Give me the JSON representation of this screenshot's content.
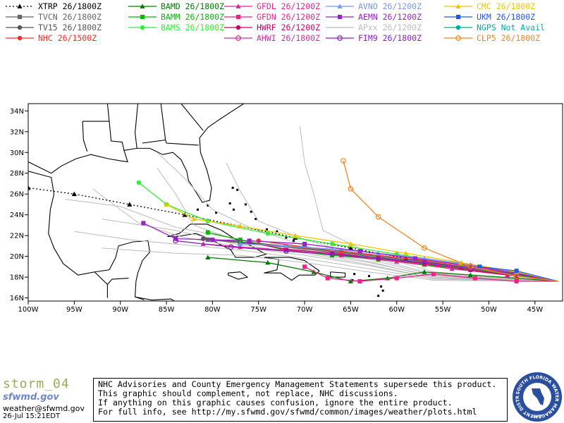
{
  "legend": [
    {
      "label": "XTRP 26/1800Z",
      "color": "#000000",
      "marker": "triangle",
      "dash": true
    },
    {
      "label": "TVCN 26/1800Z",
      "color": "#666666",
      "marker": "square"
    },
    {
      "label": "TV15 26/1800Z",
      "color": "#555555",
      "marker": "circle"
    },
    {
      "label": "NHC 26/1500Z",
      "color": "#ff2a2a",
      "marker": "circle"
    },
    {
      "label": "BAMD 26/1800Z",
      "color": "#007a00",
      "marker": "triangle"
    },
    {
      "label": "BAMM 26/1800Z",
      "color": "#00bb00",
      "marker": "square"
    },
    {
      "label": "BAMS 26/1800Z",
      "color": "#33ee33",
      "marker": "circle"
    },
    {
      "label": "GFDL 26/1200Z",
      "color": "#dd2299",
      "marker": "triangle"
    },
    {
      "label": "GFDN 26/1200Z",
      "color": "#ee2288",
      "marker": "square"
    },
    {
      "label": "HWRF 26/1200Z",
      "color": "#cc0066",
      "marker": "circle"
    },
    {
      "label": "AHWI 26/1800Z",
      "color": "#cc3399",
      "marker": "ring"
    },
    {
      "label": "AVNO 26/1200Z",
      "color": "#7799ee",
      "marker": "triangle"
    },
    {
      "label": "AEMN 26/1200Z",
      "color": "#9922cc",
      "marker": "square"
    },
    {
      "label": "APxx 26/1200Z",
      "color": "#bbbbbb",
      "marker": "none"
    },
    {
      "label": "FIM9 26/1800Z",
      "color": "#8822bb",
      "marker": "ring"
    },
    {
      "label": "CMC 26/1800Z",
      "color": "#e8c800",
      "marker": "triangle"
    },
    {
      "label": "UKM 26/1800Z",
      "color": "#2255ee",
      "marker": "square"
    },
    {
      "label": "NGPS Not Avail",
      "color": "#00aaaa",
      "marker": "circle"
    },
    {
      "label": "CLP5 26/1800Z",
      "color": "#ee8822",
      "marker": "ring"
    }
  ],
  "map": {
    "lon_range": [
      -100,
      -42
    ],
    "lat_range": [
      15.7,
      34.7
    ],
    "lat_ticks": [
      {
        "value": 16,
        "label": "16N"
      },
      {
        "value": 18,
        "label": "18N"
      },
      {
        "value": 20,
        "label": "20N"
      },
      {
        "value": 22,
        "label": "22N"
      },
      {
        "value": 24,
        "label": "24N"
      },
      {
        "value": 26,
        "label": "26N"
      },
      {
        "value": 28,
        "label": "28N"
      },
      {
        "value": 30,
        "label": "30N"
      },
      {
        "value": 32,
        "label": "32N"
      },
      {
        "value": 34,
        "label": "34N"
      }
    ],
    "lon_ticks": [
      {
        "value": -100,
        "label": "100W"
      },
      {
        "value": -95,
        "label": "95W"
      },
      {
        "value": -90,
        "label": "90W"
      },
      {
        "value": -85,
        "label": "85W"
      },
      {
        "value": -80,
        "label": "80W"
      },
      {
        "value": -75,
        "label": "75W"
      },
      {
        "value": -70,
        "label": "70W"
      },
      {
        "value": -65,
        "label": "65W"
      },
      {
        "value": -60,
        "label": "60W"
      },
      {
        "value": -55,
        "label": "55W"
      },
      {
        "value": -50,
        "label": "50W"
      },
      {
        "value": -45,
        "label": "45W"
      }
    ]
  },
  "chart_data": {
    "type": "line",
    "title": "",
    "xlabel": "",
    "ylabel": "",
    "origin": [
      -42.5,
      17.6
    ],
    "series": [
      {
        "name": "XTRP 26/1800Z",
        "color": "#000000",
        "marker": "triangle",
        "dash": true,
        "points": [
          [
            -47,
            18.1
          ],
          [
            -53,
            18.9
          ],
          [
            -59,
            19.8
          ],
          [
            -65,
            20.8
          ],
          [
            -71,
            21.8
          ],
          [
            -77,
            22.9
          ],
          [
            -83,
            24
          ],
          [
            -89,
            25
          ],
          [
            -95,
            26
          ],
          [
            -100,
            26.6
          ]
        ]
      },
      {
        "name": "TVCN 26/1800Z",
        "color": "#666666",
        "marker": "square",
        "points": [
          [
            -47,
            18.2
          ],
          [
            -52,
            18.8
          ],
          [
            -57,
            19.4
          ],
          [
            -62,
            19.9
          ],
          [
            -67,
            20.4
          ],
          [
            -72,
            20.9
          ],
          [
            -77,
            21.3
          ],
          [
            -80.5,
            21.6
          ]
        ]
      },
      {
        "name": "TV15 26/1800Z",
        "color": "#555555",
        "marker": "circle",
        "points": [
          [
            -47,
            18.3
          ],
          [
            -52,
            18.9
          ],
          [
            -57,
            19.5
          ],
          [
            -62,
            20
          ],
          [
            -67,
            20.5
          ],
          [
            -72,
            21
          ],
          [
            -77,
            21.4
          ],
          [
            -81,
            21.7
          ]
        ]
      },
      {
        "name": "NHC 26/1500Z",
        "color": "#ff2a2a",
        "marker": "circle",
        "points": [
          [
            -47,
            18.3
          ],
          [
            -52,
            19
          ],
          [
            -57,
            19.6
          ],
          [
            -62,
            20.1
          ],
          [
            -66,
            20.5
          ],
          [
            -70,
            20.9
          ],
          [
            -75,
            21.5
          ]
        ]
      },
      {
        "name": "BAMD 26/1800Z",
        "color": "#007a00",
        "marker": "triangle",
        "points": [
          [
            -47,
            17.9
          ],
          [
            -52,
            18.2
          ],
          [
            -57,
            18.5
          ],
          [
            -61,
            17.9
          ],
          [
            -65,
            17.6
          ],
          [
            -69,
            18.5
          ],
          [
            -74,
            19.4
          ],
          [
            -80.5,
            19.9
          ]
        ]
      },
      {
        "name": "BAMM 26/1800Z",
        "color": "#00bb00",
        "marker": "square",
        "points": [
          [
            -47,
            18.2
          ],
          [
            -52,
            18.7
          ],
          [
            -57,
            19.2
          ],
          [
            -62,
            19.7
          ],
          [
            -67,
            20.1
          ],
          [
            -72,
            20.6
          ],
          [
            -77,
            21.6
          ],
          [
            -80.5,
            22.3
          ]
        ]
      },
      {
        "name": "BAMS 26/1800Z",
        "color": "#33ee33",
        "marker": "circle",
        "points": [
          [
            -47,
            18.4
          ],
          [
            -53,
            19.3
          ],
          [
            -60,
            20.2
          ],
          [
            -67,
            21.2
          ],
          [
            -74,
            22.2
          ],
          [
            -80.5,
            23.4
          ],
          [
            -85,
            25
          ],
          [
            -88,
            27.1
          ]
        ]
      },
      {
        "name": "GFDL 26/1200Z",
        "color": "#dd2299",
        "marker": "triangle",
        "points": [
          [
            -48,
            18.2
          ],
          [
            -54,
            18.8
          ],
          [
            -60,
            19.5
          ],
          [
            -66,
            20.1
          ],
          [
            -72,
            20.6
          ],
          [
            -77,
            20.9
          ],
          [
            -81,
            21.2
          ]
        ]
      },
      {
        "name": "GFDN 26/1200Z",
        "color": "#ee2288",
        "marker": "square",
        "points": [
          [
            -47,
            17.6
          ],
          [
            -51.5,
            17.9
          ],
          [
            -56,
            18.3
          ],
          [
            -60,
            17.9
          ],
          [
            -64,
            17.6
          ],
          [
            -67.5,
            17.9
          ],
          [
            -70,
            19
          ]
        ]
      },
      {
        "name": "HWRF 26/1200Z",
        "color": "#cc0066",
        "marker": "circle",
        "points": [
          [
            -47,
            18.1
          ],
          [
            -52,
            18.7
          ],
          [
            -57,
            19.3
          ],
          [
            -62,
            19.8
          ],
          [
            -67,
            20.3
          ],
          [
            -72,
            20.7
          ],
          [
            -76,
            21.3
          ]
        ]
      },
      {
        "name": "AHWI 26/1800Z",
        "color": "#cc3399",
        "marker": "ring",
        "points": []
      },
      {
        "name": "AVNO 26/1200Z",
        "color": "#7799ee",
        "marker": "triangle",
        "points": [
          [
            -47,
            18.5
          ],
          [
            -52,
            19.2
          ],
          [
            -57,
            19.8
          ],
          [
            -62,
            20.3
          ],
          [
            -67,
            20.7
          ],
          [
            -72,
            21
          ],
          [
            -77,
            21.2
          ]
        ]
      },
      {
        "name": "AEMN 26/1200Z",
        "color": "#9922cc",
        "marker": "square",
        "points": [
          [
            -47,
            18.4
          ],
          [
            -52,
            19.1
          ],
          [
            -58,
            19.8
          ],
          [
            -64,
            20.5
          ],
          [
            -70,
            21.2
          ],
          [
            -76,
            21.5
          ],
          [
            -80,
            21.6
          ],
          [
            -84,
            21.7
          ],
          [
            -87.5,
            23.2
          ]
        ]
      },
      {
        "name": "FIM9 26/1800Z",
        "color": "#8822bb",
        "marker": "ring",
        "points": [
          [
            -47,
            18.3
          ],
          [
            -52,
            18.9
          ],
          [
            -57,
            19.4
          ],
          [
            -62,
            19.8
          ],
          [
            -67,
            20.2
          ],
          [
            -72,
            20.5
          ],
          [
            -78,
            20.9
          ],
          [
            -84,
            21.5
          ]
        ]
      },
      {
        "name": "CMC 26/1800Z",
        "color": "#e8c800",
        "marker": "triangle",
        "points": [
          [
            -47,
            18.5
          ],
          [
            -53,
            19.4
          ],
          [
            -59,
            20.3
          ],
          [
            -65,
            21.2
          ],
          [
            -71,
            22
          ],
          [
            -77,
            22.9
          ],
          [
            -82,
            23.6
          ],
          [
            -85,
            25
          ]
        ]
      },
      {
        "name": "UKM 26/1800Z",
        "color": "#2255ee",
        "marker": "square",
        "points": [
          [
            -47,
            18.6
          ],
          [
            -51,
            19
          ]
        ]
      },
      {
        "name": "CLP5 26/1800Z",
        "color": "#ee8822",
        "marker": "ring",
        "points": [
          [
            -47,
            18.1
          ],
          [
            -52,
            19
          ],
          [
            -57,
            20.8
          ],
          [
            -62,
            23.8
          ],
          [
            -65,
            26.5
          ],
          [
            -65.8,
            29.2
          ]
        ]
      }
    ]
  },
  "branding": {
    "storm": "storm_04",
    "logo": "sfwmd.gov",
    "email": "weather@sfwmd.gov",
    "date": "26-Jul 15:21EDT"
  },
  "disclaimer": [
    "NHC Advisories and County Emergency Management Statements supersede this product.",
    "This graphic should complement, not replace, NHC discussions.",
    "If anything on this graphic causes confusion, ignore the entire product.",
    "For full info, see  http://my.sfwmd.gov/sfwmd/common/images/weather/plots.html"
  ],
  "seal": {
    "top": "SOUTH FLORIDA WATER MANAGEMENT DISTRICT",
    "year": "1949"
  }
}
